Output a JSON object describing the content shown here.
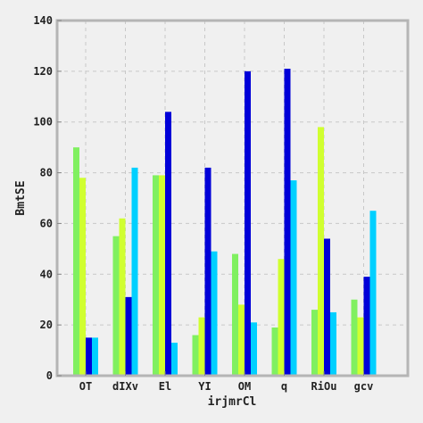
{
  "chart_data": {
    "type": "bar",
    "title": "",
    "xlabel": "irjmrCl",
    "ylabel": "BmtSE",
    "categories": [
      "OT",
      "dIXv",
      "El",
      "YI",
      "OM",
      "q",
      "RiOu",
      "gcv"
    ],
    "ylim": [
      0,
      140
    ],
    "yticks": [
      0,
      20,
      40,
      60,
      80,
      100,
      120,
      140
    ],
    "grid": true,
    "legend": "none",
    "series": [
      {
        "color": "#80f060",
        "values": [
          90,
          55,
          79,
          16,
          48,
          19,
          26,
          30
        ]
      },
      {
        "color": "#d0ff30",
        "values": [
          78,
          62,
          79,
          23,
          28,
          46,
          98,
          23
        ]
      },
      {
        "color": "#0000d8",
        "values": [
          15,
          31,
          104,
          82,
          120,
          121,
          54,
          39
        ]
      },
      {
        "color": "#00d0ff",
        "values": [
          15,
          82,
          13,
          49,
          21,
          77,
          25,
          65
        ]
      }
    ]
  }
}
